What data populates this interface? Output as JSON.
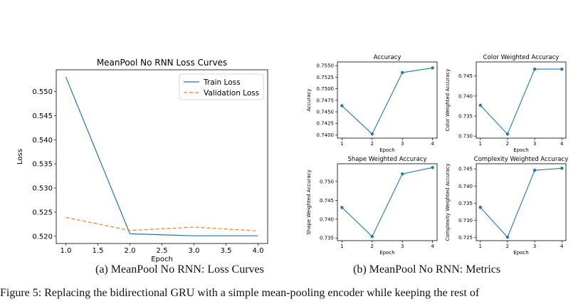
{
  "chart_data": [
    {
      "type": "line",
      "title": "MeanPool No RNN Loss Curves",
      "xlabel": "Epoch",
      "ylabel": "Loss",
      "x": [
        1,
        2,
        3,
        4
      ],
      "xlim": [
        0.85,
        4.15
      ],
      "ylim": [
        0.5185,
        0.5545
      ],
      "xticks": [
        "1.0",
        "1.5",
        "2.0",
        "2.5",
        "3.0",
        "3.5",
        "4.0"
      ],
      "yticks": [
        "0.520",
        "0.525",
        "0.530",
        "0.535",
        "0.540",
        "0.545",
        "0.550"
      ],
      "grid": false,
      "legend": "top-right",
      "series": [
        {
          "name": "Train Loss",
          "values": [
            0.553,
            0.5205,
            0.5201,
            0.5201
          ],
          "color": "#1f77b4",
          "style": "solid"
        },
        {
          "name": "Validation Loss",
          "values": [
            0.5239,
            0.5212,
            0.5219,
            0.5211
          ],
          "color": "#ff7f0e",
          "style": "dashed"
        }
      ]
    },
    {
      "type": "line",
      "title": "Accuracy",
      "xlabel": "Epoch",
      "ylabel": "Accuracy",
      "x": [
        1,
        2,
        3,
        4
      ],
      "xticks": [
        "1",
        "2",
        "3",
        "4"
      ],
      "yticks": [
        "0.7400",
        "0.7425",
        "0.7450",
        "0.7475",
        "0.7500",
        "0.7525",
        "0.7550"
      ],
      "ylim": [
        0.7393,
        0.7558
      ],
      "values": [
        0.7463,
        0.7402,
        0.7535,
        0.7545
      ],
      "color": "#1f77b4"
    },
    {
      "type": "line",
      "title": "Color Weighted Accuracy",
      "xlabel": "Epoch",
      "ylabel": "Color Weighted Accuracy",
      "x": [
        1,
        2,
        3,
        4
      ],
      "xticks": [
        "1",
        "2",
        "3",
        "4"
      ],
      "yticks": [
        "0.730",
        "0.735",
        "0.740",
        "0.745"
      ],
      "ylim": [
        0.7295,
        0.7485
      ],
      "values": [
        0.7377,
        0.7305,
        0.7467,
        0.7467
      ],
      "color": "#1f77b4"
    },
    {
      "type": "line",
      "title": "Shape Weighted Accuracy",
      "xlabel": "Epoch",
      "ylabel": "Shape Weighted Accuracy",
      "x": [
        1,
        2,
        3,
        4
      ],
      "xticks": [
        "1",
        "2",
        "3",
        "4"
      ],
      "yticks": [
        "0.735",
        "0.740",
        "0.745",
        "0.750"
      ],
      "ylim": [
        0.7343,
        0.7547
      ],
      "values": [
        0.7431,
        0.7354,
        0.752,
        0.7537
      ],
      "color": "#1f77b4"
    },
    {
      "type": "line",
      "title": "Complexity Weighted Accuracy",
      "xlabel": "Epoch",
      "ylabel": "Complexity Weighted Accuracy",
      "x": [
        1,
        2,
        3,
        4
      ],
      "xticks": [
        "1",
        "2",
        "3",
        "4"
      ],
      "yticks": [
        "0.725",
        "0.730",
        "0.735",
        "0.740",
        "0.745"
      ],
      "ylim": [
        0.7241,
        0.7465
      ],
      "values": [
        0.7338,
        0.7251,
        0.7446,
        0.7452
      ],
      "color": "#1f77b4"
    }
  ],
  "captions": {
    "a": "(a) MeanPool No RNN: Loss Curves",
    "b": "(b) MeanPool No RNN: Metrics",
    "figure_fragment": "Figure 5:  Replacing the bidirectional GRU with a simple mean-pooling encoder while keeping the rest of"
  }
}
